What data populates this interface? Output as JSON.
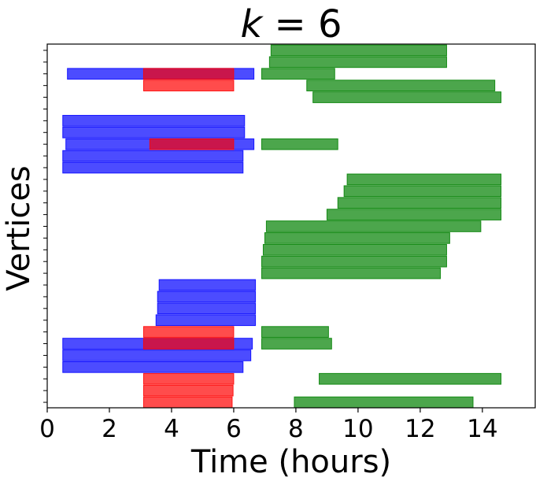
{
  "chart_data": {
    "type": "bar",
    "orientation": "horizontal-intervals",
    "title": "k = 6",
    "title_italic_part": "k",
    "title_rest": " = 6",
    "xlabel": "Time (hours)",
    "ylabel": "Vertices",
    "xlim": [
      0,
      15.7
    ],
    "ylim": [
      0,
      30
    ],
    "x_ticks": [
      0,
      2,
      4,
      6,
      8,
      10,
      12,
      14
    ],
    "x_tick_labels": [
      "0",
      "2",
      "4",
      "6",
      "8",
      "10",
      "12",
      "14"
    ],
    "y_tick_count": 30,
    "y_tick_labels_visible": false,
    "legend": "none",
    "grid": false,
    "colors": {
      "blue": "#0000ff",
      "red": "#ff0000",
      "green": "#008000",
      "overlap": "#c0143c"
    },
    "bar_opacity": 0.7,
    "intervals": [
      {
        "row": 0,
        "color": "red",
        "start": 3.1,
        "end": 5.95
      },
      {
        "row": 0,
        "color": "green",
        "start": 7.95,
        "end": 13.7
      },
      {
        "row": 1,
        "color": "red",
        "start": 3.1,
        "end": 5.98
      },
      {
        "row": 2,
        "color": "red",
        "start": 3.1,
        "end": 6.0
      },
      {
        "row": 2,
        "color": "green",
        "start": 8.75,
        "end": 14.6
      },
      {
        "row": 3,
        "color": "blue",
        "start": 0.5,
        "end": 6.3
      },
      {
        "row": 4,
        "color": "blue",
        "start": 0.5,
        "end": 6.55
      },
      {
        "row": 5,
        "color": "blue",
        "start": 0.5,
        "end": 6.6
      },
      {
        "row": 5,
        "color": "red",
        "start": 3.1,
        "end": 6.0
      },
      {
        "row": 5,
        "color": "green",
        "start": 6.9,
        "end": 9.15
      },
      {
        "row": 6,
        "color": "red",
        "start": 3.1,
        "end": 6.0
      },
      {
        "row": 6,
        "color": "green",
        "start": 6.9,
        "end": 9.05
      },
      {
        "row": 7,
        "color": "blue",
        "start": 3.5,
        "end": 6.7
      },
      {
        "row": 8,
        "color": "blue",
        "start": 3.55,
        "end": 6.7
      },
      {
        "row": 9,
        "color": "blue",
        "start": 3.55,
        "end": 6.7
      },
      {
        "row": 10,
        "color": "blue",
        "start": 3.6,
        "end": 6.7
      },
      {
        "row": 11,
        "color": "green",
        "start": 6.9,
        "end": 12.65
      },
      {
        "row": 12,
        "color": "green",
        "start": 6.9,
        "end": 12.85
      },
      {
        "row": 13,
        "color": "green",
        "start": 6.95,
        "end": 12.85
      },
      {
        "row": 14,
        "color": "green",
        "start": 7.0,
        "end": 12.95
      },
      {
        "row": 15,
        "color": "green",
        "start": 7.05,
        "end": 13.95
      },
      {
        "row": 16,
        "color": "green",
        "start": 9.0,
        "end": 14.6
      },
      {
        "row": 17,
        "color": "green",
        "start": 9.35,
        "end": 14.6
      },
      {
        "row": 18,
        "color": "green",
        "start": 9.55,
        "end": 14.6
      },
      {
        "row": 19,
        "color": "green",
        "start": 9.65,
        "end": 14.6
      },
      {
        "row": 20,
        "color": "blue",
        "start": 0.5,
        "end": 6.3
      },
      {
        "row": 21,
        "color": "blue",
        "start": 0.5,
        "end": 6.3
      },
      {
        "row": 22,
        "color": "blue",
        "start": 0.6,
        "end": 6.65
      },
      {
        "row": 22,
        "color": "red",
        "start": 3.3,
        "end": 6.0
      },
      {
        "row": 22,
        "color": "green",
        "start": 6.9,
        "end": 9.35
      },
      {
        "row": 23,
        "color": "blue",
        "start": 0.5,
        "end": 6.35
      },
      {
        "row": 24,
        "color": "blue",
        "start": 0.5,
        "end": 6.35
      },
      {
        "row": 26,
        "color": "green",
        "start": 8.55,
        "end": 14.6
      },
      {
        "row": 27,
        "color": "red",
        "start": 3.1,
        "end": 6.0
      },
      {
        "row": 27,
        "color": "green",
        "start": 8.35,
        "end": 14.4
      },
      {
        "row": 28,
        "color": "blue",
        "start": 0.65,
        "end": 6.65
      },
      {
        "row": 28,
        "color": "red",
        "start": 3.1,
        "end": 6.0
      },
      {
        "row": 28,
        "color": "green",
        "start": 6.9,
        "end": 9.25
      },
      {
        "row": 29,
        "color": "green",
        "start": 7.15,
        "end": 12.85
      },
      {
        "row": 30,
        "color": "green",
        "start": 7.2,
        "end": 12.85
      }
    ]
  }
}
